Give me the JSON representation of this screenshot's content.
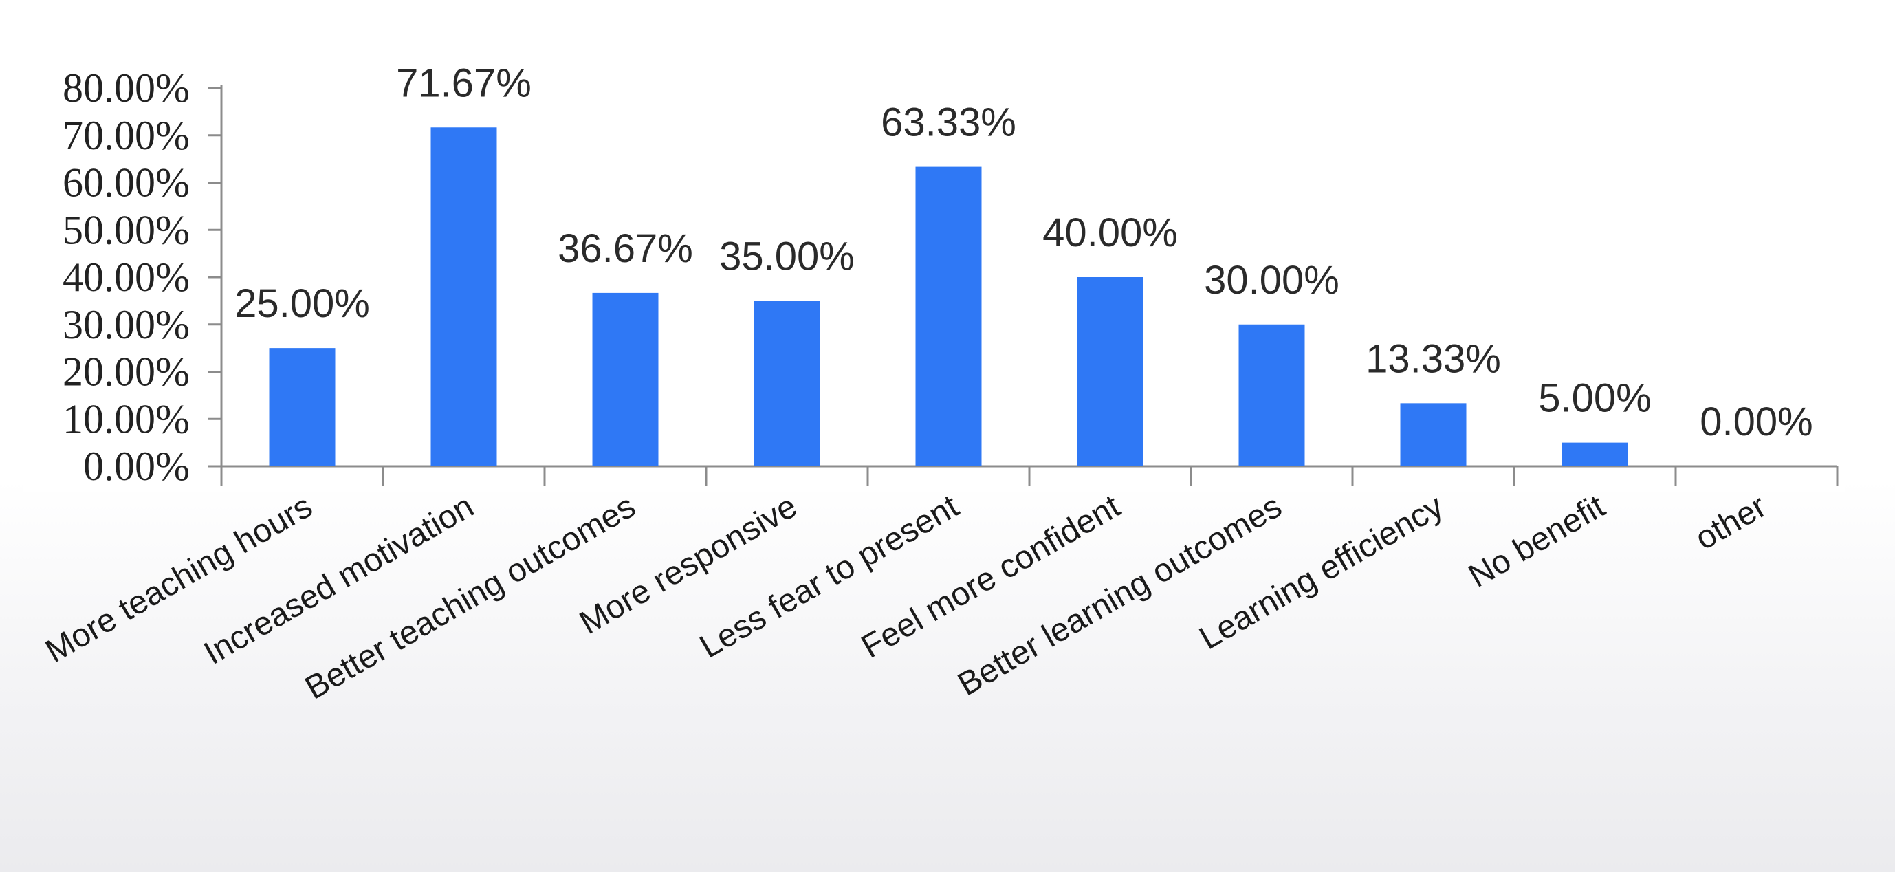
{
  "chart_data": {
    "type": "bar",
    "categories": [
      "More teaching hours",
      "Increased motivation",
      "Better teaching outcomes",
      "More responsive",
      "Less fear to present",
      "Feel more confident",
      "Better learning outcomes",
      "Learning efficiency",
      "No benefit",
      "other"
    ],
    "values": [
      25.0,
      71.67,
      36.67,
      35.0,
      63.33,
      40.0,
      30.0,
      13.33,
      5.0,
      0.0
    ],
    "value_labels": [
      "25.00%",
      "71.67%",
      "36.67%",
      "35.00%",
      "63.33%",
      "40.00%",
      "30.00%",
      "13.33%",
      "5.00%",
      "0.00%"
    ],
    "y_ticks": [
      "0.00%",
      "10.00%",
      "20.00%",
      "30.00%",
      "40.00%",
      "50.00%",
      "60.00%",
      "70.00%",
      "80.00%"
    ],
    "ylim": [
      0,
      80
    ],
    "title": "",
    "xlabel": "",
    "ylabel": "",
    "grid": false,
    "legend": "none",
    "colors": {
      "bar": "#2f78f5",
      "axis": "#8c8c8c",
      "plot_background": "#ffffff"
    }
  }
}
